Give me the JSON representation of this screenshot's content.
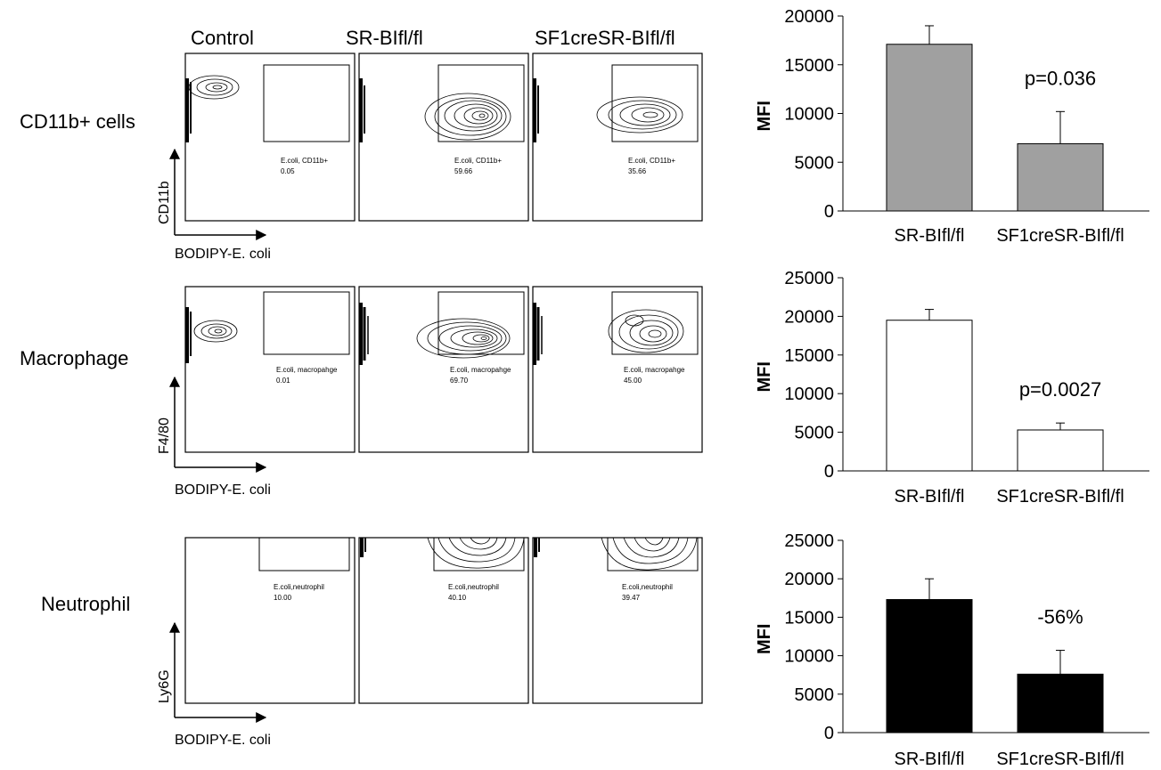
{
  "flow": {
    "columns": [
      "Control",
      "SR-BIfl/fl",
      "SF1creSR-BIfl/fl"
    ],
    "rows": [
      {
        "label": "CD11b+ cells",
        "ylabel": "CD11b",
        "xlabel": "BODIPY-E. coli",
        "gates": [
          {
            "name": "E.coli, CD11b+",
            "value": "0.05"
          },
          {
            "name": "E.coli, CD11b+",
            "value": "59.66"
          },
          {
            "name": "E.coli, CD11b+",
            "value": "35.66"
          }
        ]
      },
      {
        "label": "Macrophage",
        "ylabel": "F4/80",
        "xlabel": "BODIPY-E. coli",
        "gates": [
          {
            "name": "E.coli, macropahge",
            "value": "0.01"
          },
          {
            "name": "E.coli, macropahge",
            "value": "69.70"
          },
          {
            "name": "E.coli, macropahge",
            "value": "45.00"
          }
        ]
      },
      {
        "label": "Neutrophil",
        "ylabel": "Ly6G",
        "xlabel": "BODIPY-E. coli",
        "gates": [
          {
            "name": "E.coli,neutrophil",
            "value": "10.00"
          },
          {
            "name": "E.coli,neutrophil",
            "value": "40.10"
          },
          {
            "name": "E.coli,neutrophil",
            "value": "39.47"
          }
        ]
      }
    ]
  },
  "chart_data": [
    {
      "type": "bar",
      "categories": [
        "SR-BIfl/fl",
        "SF1creSR-BIfl/fl"
      ],
      "values": [
        17100,
        6900
      ],
      "errors": [
        1900,
        3300
      ],
      "ylabel": "MFI",
      "ylim": [
        0,
        20000
      ],
      "yticks": [
        0,
        5000,
        10000,
        15000,
        20000
      ],
      "bar_color": "#a0a0a0",
      "annotation": "p=0.036"
    },
    {
      "type": "bar",
      "categories": [
        "SR-BIfl/fl",
        "SF1creSR-BIfl/fl"
      ],
      "values": [
        19500,
        5300
      ],
      "errors": [
        1400,
        900
      ],
      "ylabel": "MFI",
      "ylim": [
        0,
        25000
      ],
      "yticks": [
        0,
        5000,
        10000,
        15000,
        20000,
        25000
      ],
      "bar_color": "#ffffff",
      "annotation": "p=0.0027"
    },
    {
      "type": "bar",
      "categories": [
        "SR-BIfl/fl",
        "SF1creSR-BIfl/fl"
      ],
      "values": [
        17300,
        7600
      ],
      "errors": [
        2700,
        3100
      ],
      "ylabel": "MFI",
      "ylim": [
        0,
        25000
      ],
      "yticks": [
        0,
        5000,
        10000,
        15000,
        20000,
        25000
      ],
      "bar_color": "#000000",
      "annotation": "-56%"
    }
  ]
}
